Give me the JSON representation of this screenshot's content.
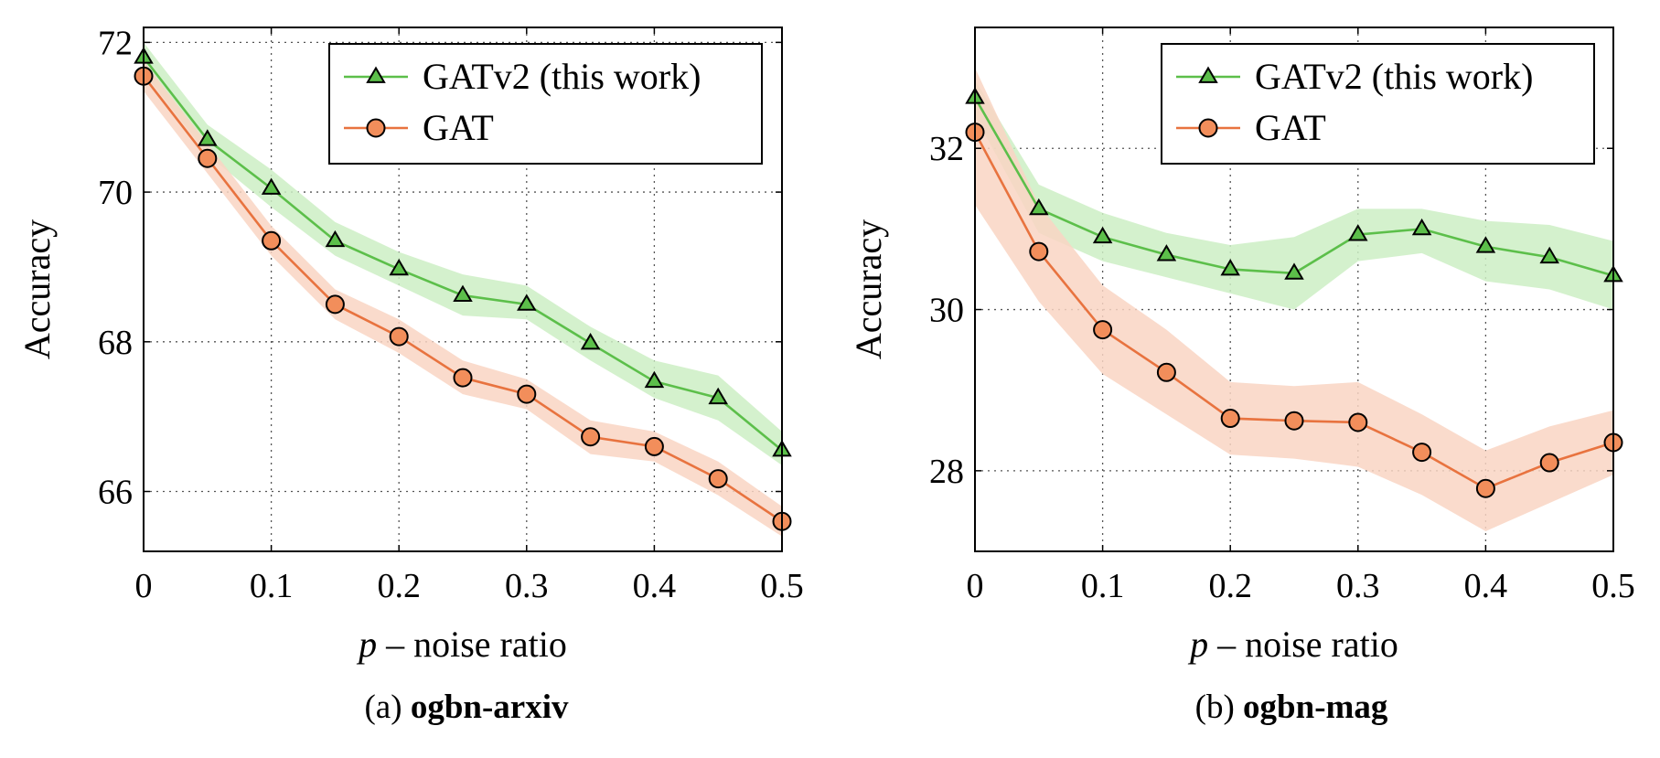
{
  "figure": {
    "captions": [
      {
        "prefix": "(a) ",
        "name": "ogbn-arxiv"
      },
      {
        "prefix": "(b) ",
        "name": "ogbn-mag"
      }
    ]
  },
  "colors": {
    "gatv2_line": "#5cbf4a",
    "gatv2_band": "#cdeec4",
    "gat_line": "#e8733f",
    "gat_fill": "#f28e5b",
    "gat_band": "#f9d5c3"
  },
  "chart_data": [
    {
      "type": "line",
      "title": "",
      "xlabel_var": "p",
      "xlabel_rest": " – noise ratio",
      "ylabel": "Accuracy",
      "x": [
        0,
        0.05,
        0.1,
        0.15,
        0.2,
        0.25,
        0.3,
        0.35,
        0.4,
        0.45,
        0.5
      ],
      "xlim": [
        0,
        0.5
      ],
      "ylim": [
        65.2,
        72.2
      ],
      "xticks": [
        0,
        0.1,
        0.2,
        0.3,
        0.4,
        0.5
      ],
      "yticks": [
        66,
        68,
        70,
        72
      ],
      "grid": true,
      "legend_position": "top-right",
      "series": [
        {
          "name": "GATv2 (this work)",
          "marker": "triangle",
          "values": [
            71.8,
            70.7,
            70.05,
            69.35,
            68.97,
            68.62,
            68.5,
            67.98,
            67.47,
            67.25,
            66.55
          ],
          "lower": [
            71.6,
            70.5,
            69.8,
            69.15,
            68.75,
            68.35,
            68.3,
            67.75,
            67.25,
            66.95,
            66.35
          ],
          "upper": [
            72.0,
            70.9,
            70.3,
            69.6,
            69.2,
            68.9,
            68.75,
            68.2,
            67.75,
            67.55,
            66.8
          ]
        },
        {
          "name": "GAT",
          "marker": "circle",
          "values": [
            71.55,
            70.45,
            69.35,
            68.5,
            68.07,
            67.52,
            67.3,
            66.73,
            66.6,
            66.17,
            65.6
          ],
          "lower": [
            71.35,
            70.25,
            69.15,
            68.3,
            67.85,
            67.3,
            67.1,
            66.5,
            66.4,
            65.95,
            65.4
          ],
          "upper": [
            71.75,
            70.65,
            69.55,
            68.7,
            68.3,
            67.75,
            67.5,
            66.95,
            66.8,
            66.4,
            65.8
          ]
        }
      ]
    },
    {
      "type": "line",
      "title": "",
      "xlabel_var": "p",
      "xlabel_rest": " – noise ratio",
      "ylabel": "Accuracy",
      "x": [
        0,
        0.05,
        0.1,
        0.15,
        0.2,
        0.25,
        0.3,
        0.35,
        0.4,
        0.45,
        0.5
      ],
      "xlim": [
        0,
        0.5
      ],
      "ylim": [
        27.0,
        33.5
      ],
      "xticks": [
        0,
        0.1,
        0.2,
        0.3,
        0.4,
        0.5
      ],
      "yticks": [
        28,
        30,
        32
      ],
      "grid": true,
      "legend_position": "top-right",
      "series": [
        {
          "name": "GATv2 (this work)",
          "marker": "triangle",
          "values": [
            32.63,
            31.25,
            30.9,
            30.68,
            30.5,
            30.45,
            30.93,
            31.0,
            30.78,
            30.65,
            30.42
          ],
          "lower": [
            32.4,
            30.95,
            30.6,
            30.4,
            30.2,
            30.0,
            30.6,
            30.7,
            30.35,
            30.25,
            30.0
          ],
          "upper": [
            32.85,
            31.55,
            31.2,
            30.95,
            30.8,
            30.9,
            31.25,
            31.25,
            31.1,
            31.05,
            30.85
          ]
        },
        {
          "name": "GAT",
          "marker": "circle",
          "values": [
            32.2,
            30.72,
            29.75,
            29.22,
            28.65,
            28.62,
            28.6,
            28.23,
            27.78,
            28.1,
            28.35
          ],
          "lower": [
            31.3,
            30.1,
            29.2,
            28.7,
            28.2,
            28.15,
            28.05,
            27.7,
            27.25,
            27.6,
            27.95
          ],
          "upper": [
            33.0,
            31.3,
            30.3,
            29.75,
            29.1,
            29.05,
            29.1,
            28.7,
            28.25,
            28.55,
            28.75
          ]
        }
      ]
    }
  ]
}
